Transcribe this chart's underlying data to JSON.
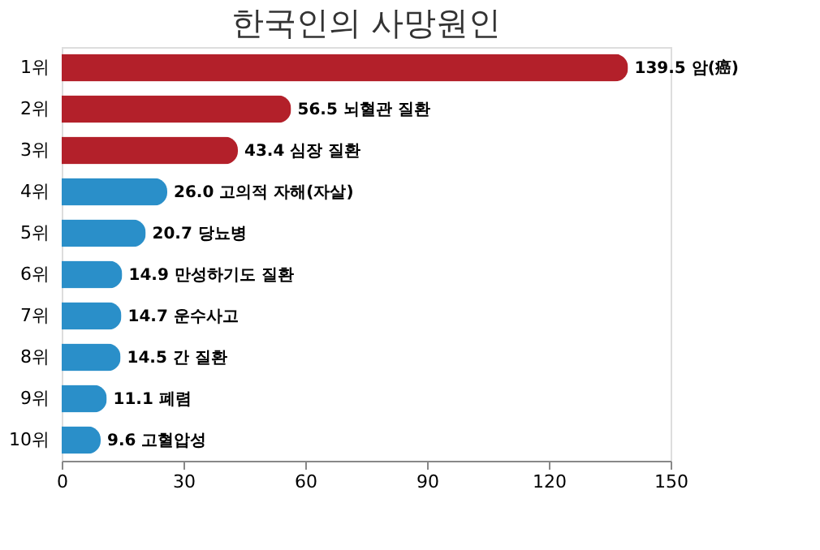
{
  "chart_data": {
    "type": "bar",
    "orientation": "horizontal",
    "title": "한국인의 사망원인",
    "categories": [
      "1위",
      "2위",
      "3위",
      "4위",
      "5위",
      "6위",
      "7위",
      "8위",
      "9위",
      "10위"
    ],
    "values": [
      139.5,
      56.5,
      43.4,
      26.0,
      20.7,
      14.9,
      14.7,
      14.5,
      11.1,
      9.6
    ],
    "colors": [
      "#b3202a",
      "#b3202a",
      "#b3202a",
      "#2a8fc9",
      "#2a8fc9",
      "#2a8fc9",
      "#2a8fc9",
      "#2a8fc9",
      "#2a8fc9",
      "#2a8fc9"
    ],
    "value_labels": [
      "139.5 암(癌)",
      "56.5 뇌혈관 질환",
      "43.4 심장 질환",
      "26.0 고의적 자해(자살)",
      "20.7 당뇨병",
      "14.9 만성하기도 질환",
      "14.7 운수사고",
      "14.5 간 질환",
      "11.1 폐렴",
      "9.6 고혈압성"
    ],
    "xlim": [
      0,
      150
    ],
    "xticks": [
      0,
      30,
      60,
      90,
      120,
      150
    ],
    "grid": false
  }
}
